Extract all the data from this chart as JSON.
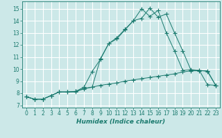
{
  "title": "",
  "xlabel": "Humidex (Indice chaleur)",
  "bg_color": "#cce8e8",
  "grid_color": "#ffffff",
  "line_color": "#1a7a6e",
  "xlim": [
    -0.5,
    23.5
  ],
  "ylim": [
    6.8,
    15.6
  ],
  "xticks": [
    0,
    1,
    2,
    3,
    4,
    5,
    6,
    7,
    8,
    9,
    10,
    11,
    12,
    13,
    14,
    15,
    16,
    17,
    18,
    19,
    20,
    21,
    22,
    23
  ],
  "yticks": [
    7,
    8,
    9,
    10,
    11,
    12,
    13,
    14,
    15
  ],
  "line1_x": [
    0,
    1,
    2,
    3,
    4,
    5,
    6,
    7,
    8,
    9,
    10,
    11,
    12,
    13,
    14,
    15,
    16,
    17,
    18,
    19,
    20,
    21,
    22,
    23
  ],
  "line1_y": [
    7.7,
    7.5,
    7.5,
    7.8,
    8.1,
    8.1,
    8.15,
    8.35,
    8.5,
    8.65,
    8.75,
    8.85,
    9.0,
    9.1,
    9.2,
    9.3,
    9.4,
    9.5,
    9.6,
    9.75,
    9.85,
    9.85,
    9.85,
    8.65
  ],
  "line2_x": [
    0,
    1,
    2,
    3,
    4,
    5,
    6,
    7,
    8,
    9,
    10,
    11,
    12,
    13,
    14,
    15,
    16,
    17,
    18,
    19,
    20,
    21,
    22,
    23
  ],
  "line2_y": [
    7.7,
    7.5,
    7.5,
    7.8,
    8.1,
    8.1,
    8.15,
    8.5,
    9.8,
    10.8,
    12.1,
    12.6,
    13.3,
    14.0,
    14.2,
    15.05,
    14.3,
    14.55,
    13.0,
    11.5,
    9.9,
    9.9,
    9.8,
    8.65
  ],
  "line3_x": [
    0,
    1,
    2,
    3,
    4,
    5,
    6,
    7,
    8,
    9,
    10,
    11,
    12,
    13,
    14,
    15,
    16,
    17,
    18,
    19,
    20,
    21,
    22,
    23
  ],
  "line3_y": [
    7.7,
    7.5,
    7.5,
    7.8,
    8.1,
    8.1,
    8.1,
    8.4,
    8.5,
    10.85,
    12.1,
    12.5,
    13.25,
    14.0,
    15.0,
    14.35,
    14.85,
    13.0,
    11.5,
    9.9,
    9.95,
    9.9,
    8.7,
    8.65
  ],
  "xlabel_fontsize": 6.5,
  "tick_fontsize": 5.5,
  "marker_size": 2.0
}
